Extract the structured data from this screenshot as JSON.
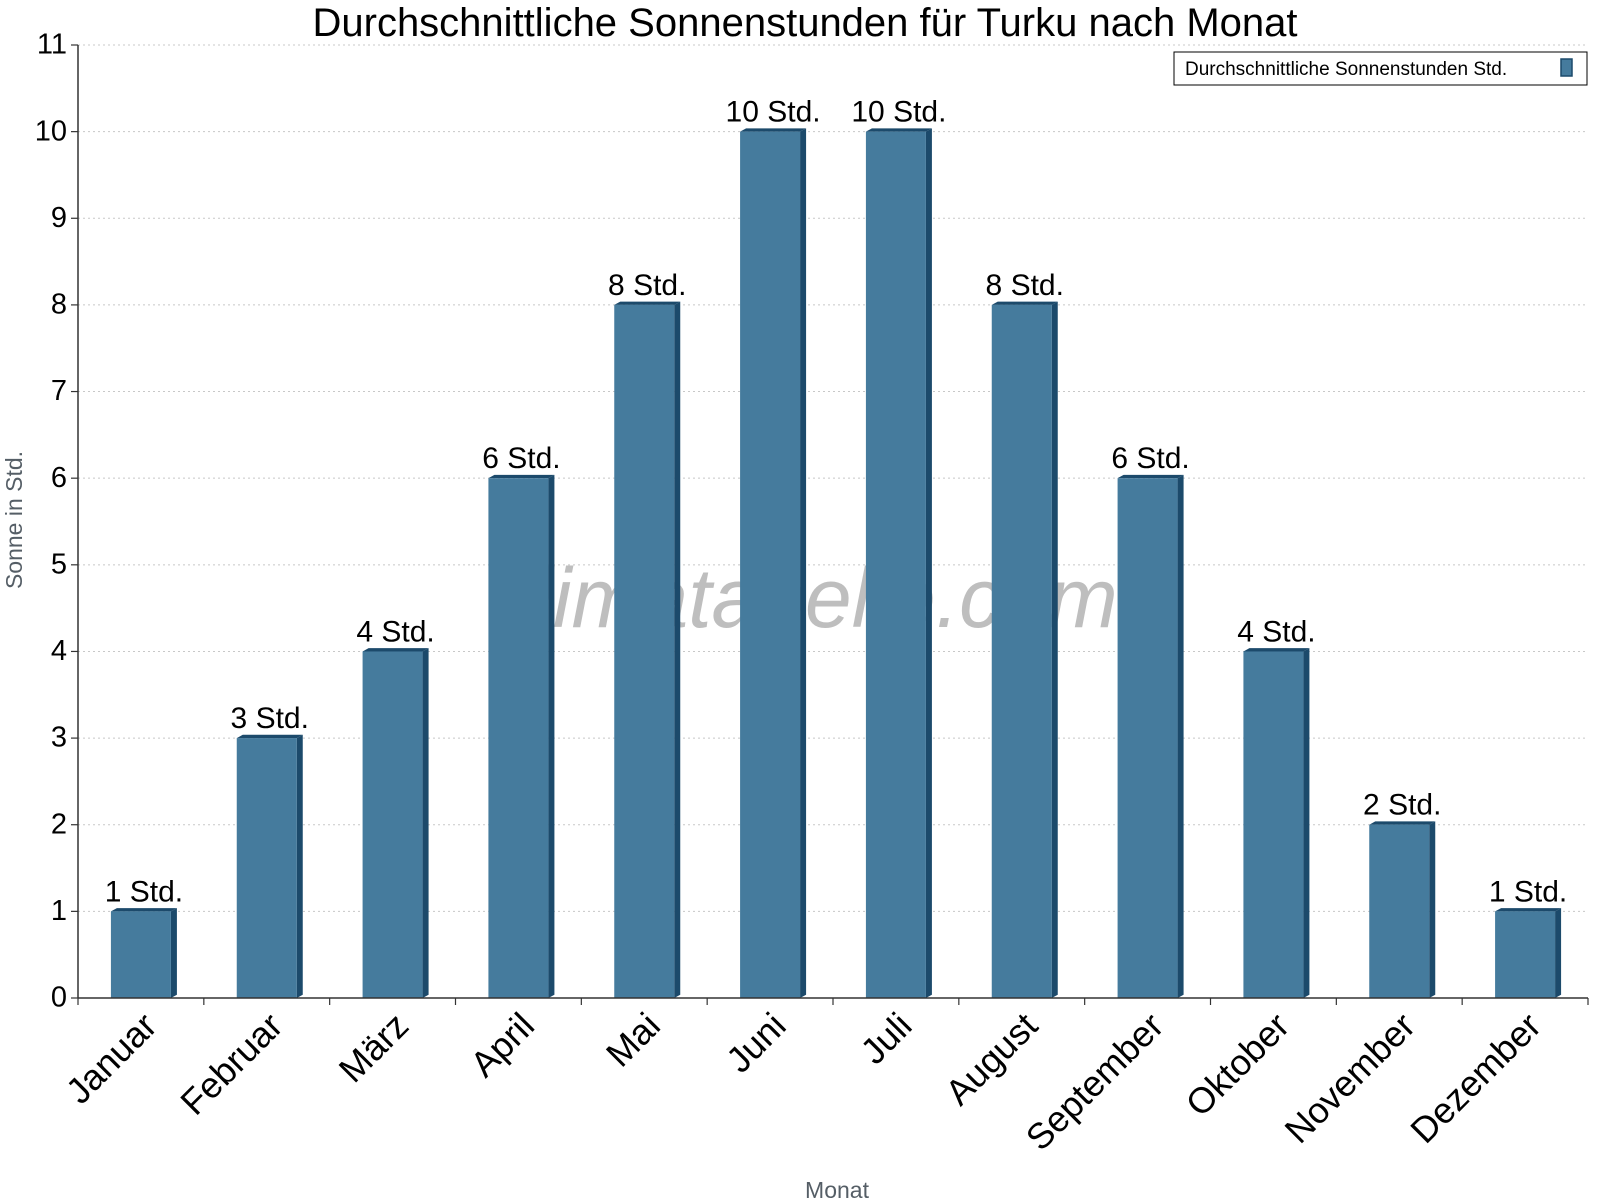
{
  "chart_data": {
    "type": "bar",
    "title": "Durchschnittliche Sonnenstunden für Turku nach Monat",
    "xlabel": "Monat",
    "ylabel": "Sonne in Std.",
    "ylim": [
      0,
      11
    ],
    "yticks": [
      "0",
      "1",
      "2",
      "3",
      "4",
      "5",
      "6",
      "7",
      "8",
      "9",
      "10",
      "11"
    ],
    "grid": true,
    "legend_position": "top-right",
    "categories": [
      "Januar",
      "Februar",
      "März",
      "April",
      "Mai",
      "Juni",
      "Juli",
      "August",
      "September",
      "Oktober",
      "November",
      "Dezember"
    ],
    "series": [
      {
        "name": "Durchschnittliche Sonnenstunden Std.",
        "color": "#457b9d",
        "values": [
          1,
          3,
          4,
          6,
          8,
          10,
          10,
          8,
          6,
          4,
          2,
          1
        ],
        "data_labels": [
          "1 Std.",
          "3 Std.",
          "4 Std.",
          "6 Std.",
          "8 Std.",
          "10 Std.",
          "10 Std.",
          "8 Std.",
          "6 Std.",
          "4 Std.",
          "2 Std.",
          "1 Std."
        ]
      }
    ],
    "watermark": "klimatabelle.com"
  }
}
